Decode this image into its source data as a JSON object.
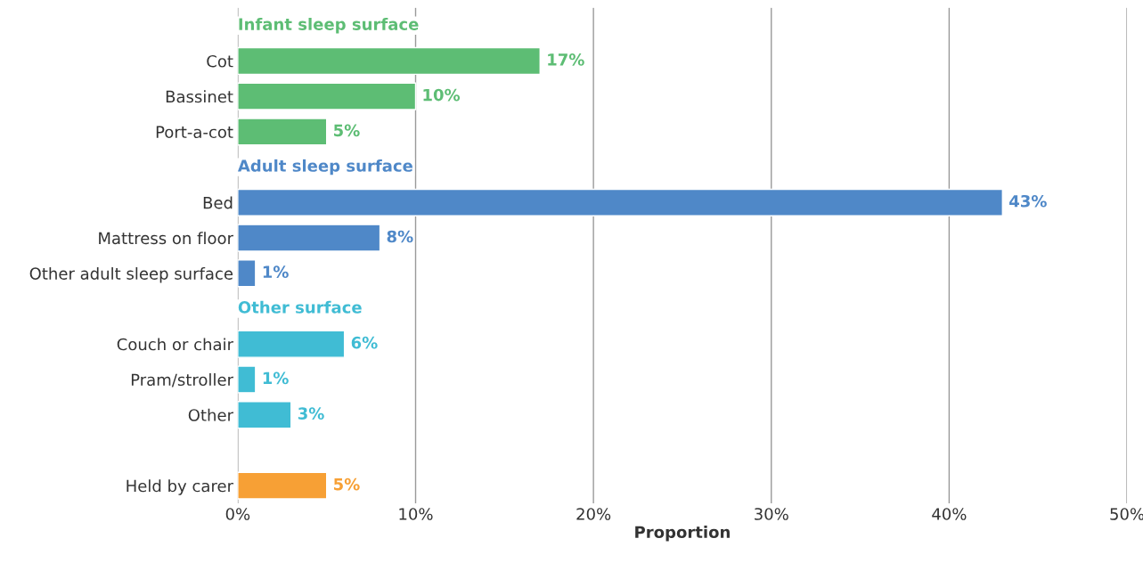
{
  "chart_data": {
    "type": "bar",
    "orientation": "horizontal",
    "xlabel": "Proportion",
    "categories": [
      null,
      "Cot",
      "Bassinet",
      "Port-a-cot",
      null,
      "Bed",
      "Mattress on floor",
      "Other adult sleep surface",
      null,
      "Couch or chair",
      "Pram/stroller",
      "Other",
      null,
      "Held by carer"
    ],
    "series": [
      {
        "name": "Infant sleep surface",
        "color": "#5dbd74",
        "values": [
          null,
          17,
          10,
          5,
          null,
          null,
          null,
          null,
          null,
          null,
          null,
          null,
          null,
          null
        ],
        "value_labels": [
          null,
          "17%",
          "10%",
          "5%",
          null,
          null,
          null,
          null,
          null,
          null,
          null,
          null,
          null,
          null
        ]
      },
      {
        "name": "Adult sleep surface",
        "color": "#4f88c8",
        "values": [
          null,
          null,
          null,
          null,
          null,
          43,
          8,
          1,
          null,
          null,
          null,
          null,
          null,
          null
        ],
        "value_labels": [
          null,
          null,
          null,
          null,
          null,
          "43%",
          "8%",
          "1%",
          null,
          null,
          null,
          null,
          null,
          null
        ]
      },
      {
        "name": "Other surface",
        "color": "#40bcd4",
        "values": [
          null,
          null,
          null,
          null,
          null,
          null,
          null,
          null,
          null,
          6,
          1,
          3,
          null,
          null
        ],
        "value_labels": [
          null,
          null,
          null,
          null,
          null,
          null,
          null,
          null,
          null,
          "6%",
          "1%",
          "3%",
          null,
          null
        ]
      },
      {
        "color": "#f7a035",
        "values": [
          null,
          null,
          null,
          null,
          null,
          null,
          null,
          null,
          null,
          null,
          null,
          null,
          null,
          5
        ],
        "value_labels": [
          null,
          null,
          null,
          null,
          null,
          null,
          null,
          null,
          null,
          null,
          null,
          null,
          null,
          "5%"
        ]
      }
    ],
    "xlim": [
      0,
      50
    ],
    "xticks": [
      {
        "value": 0,
        "label": "0%"
      },
      {
        "value": 10,
        "label": "10%"
      },
      {
        "value": 20,
        "label": "20%"
      },
      {
        "value": 30,
        "label": "30%"
      },
      {
        "value": 40,
        "label": "40%"
      },
      {
        "value": 50,
        "label": "50%"
      }
    ],
    "grid": "x",
    "legend": false
  }
}
